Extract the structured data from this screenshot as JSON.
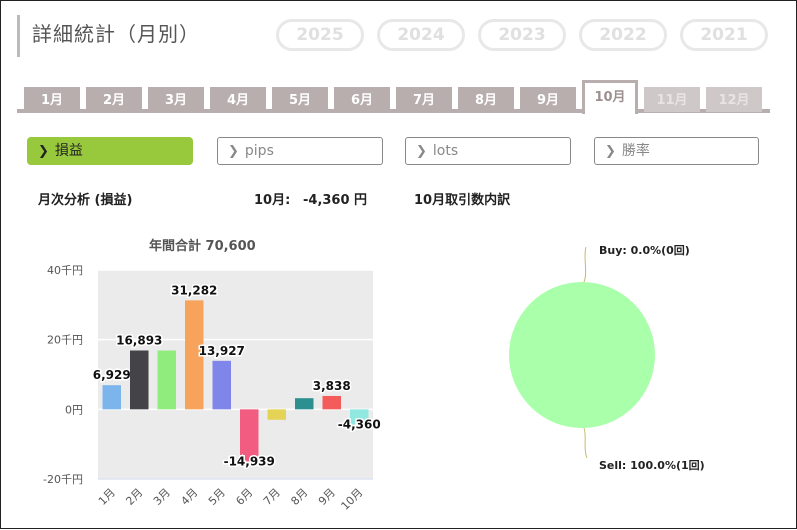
{
  "header": {
    "title": "詳細統計（月別）"
  },
  "years": [
    {
      "label": "2025",
      "active": true
    },
    {
      "label": "2024",
      "active": false
    },
    {
      "label": "2023",
      "active": false
    },
    {
      "label": "2022",
      "active": false
    },
    {
      "label": "2021",
      "active": false
    }
  ],
  "months": [
    {
      "label": "1月",
      "state": "normal"
    },
    {
      "label": "2月",
      "state": "normal"
    },
    {
      "label": "3月",
      "state": "normal"
    },
    {
      "label": "4月",
      "state": "normal"
    },
    {
      "label": "5月",
      "state": "normal"
    },
    {
      "label": "6月",
      "state": "normal"
    },
    {
      "label": "7月",
      "state": "normal"
    },
    {
      "label": "8月",
      "state": "normal"
    },
    {
      "label": "9月",
      "state": "normal"
    },
    {
      "label": "10月",
      "state": "active"
    },
    {
      "label": "11月",
      "state": "disabled"
    },
    {
      "label": "12月",
      "state": "disabled"
    }
  ],
  "filters": [
    {
      "label": "損益",
      "active": true
    },
    {
      "label": "pips",
      "active": false
    },
    {
      "label": "lots",
      "active": false
    },
    {
      "label": "勝率",
      "active": false
    }
  ],
  "summary": {
    "section_title": "月次分析 (損益)",
    "month_result_label": "10月:",
    "month_result_value": "-4,360 円",
    "breakdown_title": "10月取引数内訳"
  },
  "chart_data": [
    {
      "type": "bar",
      "title": "年間合計 70,600",
      "categories": [
        "1月",
        "2月",
        "3月",
        "4月",
        "5月",
        "6月",
        "7月",
        "8月",
        "9月",
        "10月"
      ],
      "values": [
        6929,
        16893,
        16893,
        31282,
        13927,
        -14939,
        -3000,
        3200,
        3838,
        -4360
      ],
      "data_labels": [
        "6,929",
        "16,893",
        "",
        "31,282",
        "13,927",
        "-14,939",
        "",
        "",
        "3,838",
        "-4,360"
      ],
      "colors": [
        "#7cb5ec",
        "#434348",
        "#90ed7d",
        "#f7a35c",
        "#8085e9",
        "#f15c80",
        "#e4d354",
        "#2b908f",
        "#f45b5b",
        "#91e8e1"
      ],
      "yticks": [
        {
          "value": 40000,
          "label": "40千円"
        },
        {
          "value": 20000,
          "label": "20千円"
        },
        {
          "value": 0,
          "label": "0円"
        },
        {
          "value": -20000,
          "label": "-20千円"
        }
      ],
      "ylim": [
        -20000,
        40000
      ],
      "grid": true
    },
    {
      "type": "pie",
      "labels": [
        "Buy: 0.0%(0回)",
        "Sell: 100.0%(1回)"
      ],
      "values": [
        0,
        100
      ],
      "colors": [
        "#aaffaa",
        "#aaffaa"
      ]
    }
  ]
}
